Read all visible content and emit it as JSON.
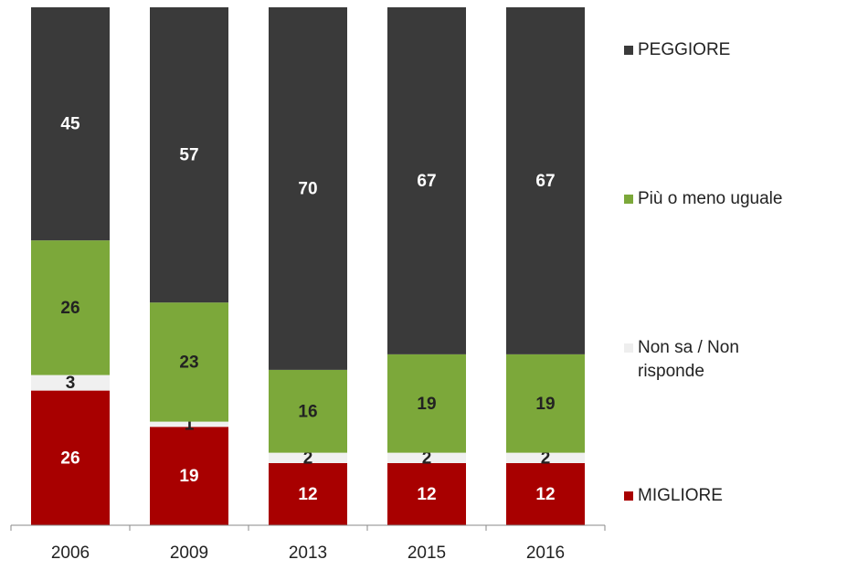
{
  "chart_data": {
    "type": "stacked_bar",
    "categories": [
      "2006",
      "2009",
      "2013",
      "2015",
      "2016"
    ],
    "ylim": [
      0,
      100
    ],
    "series": [
      {
        "name": "MIGLIORE",
        "color": "#a80000",
        "label_color": "#ffffff",
        "values": [
          26,
          19,
          12,
          12,
          12
        ]
      },
      {
        "name": "Non sa / Non risponde",
        "color": "#f0f0f0",
        "label_color": "#222222",
        "values": [
          3,
          1,
          2,
          2,
          2
        ]
      },
      {
        "name": "Più o meno uguale",
        "color": "#7ca83a",
        "label_color": "#222222",
        "values": [
          26,
          23,
          16,
          19,
          19
        ]
      },
      {
        "name": "PEGGIORE",
        "color": "#3a3a3a",
        "label_color": "#ffffff",
        "values": [
          45,
          57,
          70,
          67,
          67
        ]
      }
    ]
  }
}
